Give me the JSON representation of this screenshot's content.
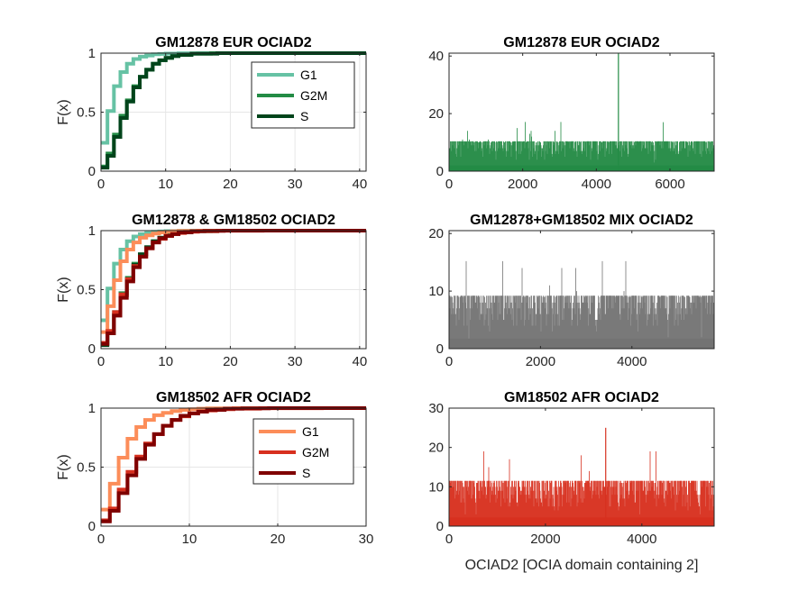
{
  "figure": {
    "footer_xlabel": "OCIAD2 [OCIA domain containing 2]"
  },
  "colors": {
    "eur_g1": "#66c2a4",
    "eur_g2m": "#238b45",
    "eur_s": "#00441b",
    "afr_g1": "#fc8d59",
    "afr_g2m": "#d7301f",
    "afr_s": "#7f0000",
    "hist_eur": "#238b45",
    "hist_mix": "#737373",
    "hist_afr": "#d7301f",
    "grid": "#e6e6e6",
    "axis": "#262626"
  },
  "chart_data": [
    {
      "id": "cdf_eur",
      "type": "line",
      "subtype": "ecdf-stairs",
      "title": "GM12878 EUR OCIAD2",
      "ylabel": "F(x)",
      "xlim": [
        0,
        41
      ],
      "ylim": [
        0,
        1
      ],
      "xticks": [
        0,
        10,
        20,
        30,
        40
      ],
      "yticks": [
        0,
        0.5,
        1
      ],
      "grid": true,
      "legend": "top-right",
      "series": [
        {
          "name": "G1",
          "color": "#66c2a4",
          "x": [
            0,
            1,
            2,
            3,
            4,
            5,
            6,
            7,
            8,
            9,
            10,
            12,
            15,
            41
          ],
          "y": [
            0.24,
            0.51,
            0.72,
            0.84,
            0.91,
            0.95,
            0.97,
            0.98,
            0.99,
            0.993,
            0.996,
            0.999,
            1,
            1
          ]
        },
        {
          "name": "G2M",
          "color": "#238b45",
          "x": [
            0,
            1,
            2,
            3,
            4,
            5,
            6,
            7,
            8,
            9,
            10,
            11,
            12,
            14,
            17,
            41
          ],
          "y": [
            0.04,
            0.15,
            0.31,
            0.47,
            0.6,
            0.72,
            0.8,
            0.86,
            0.91,
            0.94,
            0.96,
            0.975,
            0.985,
            0.995,
            1,
            1
          ]
        },
        {
          "name": "S",
          "color": "#00441b",
          "x": [
            0,
            1,
            2,
            3,
            4,
            5,
            6,
            7,
            8,
            9,
            10,
            11,
            12,
            14,
            18,
            41
          ],
          "y": [
            0.03,
            0.13,
            0.29,
            0.45,
            0.59,
            0.71,
            0.8,
            0.86,
            0.91,
            0.94,
            0.96,
            0.975,
            0.985,
            0.995,
            1,
            1
          ]
        }
      ]
    },
    {
      "id": "hist_eur",
      "type": "bar",
      "subtype": "count-histogram",
      "title": "GM12878 EUR OCIAD2",
      "xlim": [
        0,
        7200
      ],
      "ylim": [
        0,
        41
      ],
      "xticks": [
        0,
        2000,
        4000,
        6000
      ],
      "yticks": [
        0,
        20,
        40
      ],
      "n_cells": 7200,
      "typical_max": 9,
      "peak": {
        "x": 4600,
        "y": 41
      },
      "color": "#238b45"
    },
    {
      "id": "cdf_mix",
      "type": "line",
      "subtype": "ecdf-stairs",
      "title": "GM12878 & GM18502 OCIAD2",
      "ylabel": "F(x)",
      "xlim": [
        0,
        41
      ],
      "ylim": [
        0,
        1
      ],
      "xticks": [
        0,
        10,
        20,
        30,
        40
      ],
      "yticks": [
        0,
        0.5,
        1
      ],
      "grid": true,
      "series": [
        {
          "name": "G1",
          "color": "#66c2a4",
          "x": [
            0,
            1,
            2,
            3,
            4,
            5,
            6,
            7,
            8,
            9,
            10,
            12,
            15,
            41
          ],
          "y": [
            0.24,
            0.51,
            0.72,
            0.84,
            0.91,
            0.95,
            0.97,
            0.98,
            0.99,
            0.993,
            0.996,
            0.999,
            1,
            1
          ]
        },
        {
          "name": "G2M",
          "color": "#238b45",
          "x": [
            0,
            1,
            2,
            3,
            4,
            5,
            6,
            7,
            8,
            9,
            10,
            11,
            12,
            14,
            17,
            41
          ],
          "y": [
            0.04,
            0.15,
            0.31,
            0.47,
            0.6,
            0.72,
            0.8,
            0.86,
            0.91,
            0.94,
            0.96,
            0.975,
            0.985,
            0.995,
            1,
            1
          ]
        },
        {
          "name": "S",
          "color": "#00441b",
          "x": [
            0,
            1,
            2,
            3,
            4,
            5,
            6,
            7,
            8,
            9,
            10,
            11,
            12,
            14,
            18,
            41
          ],
          "y": [
            0.03,
            0.13,
            0.29,
            0.45,
            0.59,
            0.71,
            0.8,
            0.86,
            0.91,
            0.94,
            0.96,
            0.975,
            0.985,
            0.995,
            1,
            1
          ]
        },
        {
          "name": "G1",
          "color": "#fc8d59",
          "x": [
            0,
            1,
            2,
            3,
            4,
            5,
            6,
            7,
            8,
            9,
            10,
            11,
            12,
            15
          ],
          "y": [
            0.14,
            0.36,
            0.58,
            0.74,
            0.84,
            0.9,
            0.94,
            0.96,
            0.975,
            0.985,
            0.99,
            0.995,
            0.998,
            1
          ]
        },
        {
          "name": "G2M",
          "color": "#d7301f",
          "x": [
            0,
            1,
            2,
            3,
            4,
            5,
            6,
            7,
            8,
            9,
            10,
            11,
            12,
            13,
            15,
            18,
            25
          ],
          "y": [
            0.05,
            0.15,
            0.31,
            0.46,
            0.59,
            0.7,
            0.78,
            0.85,
            0.9,
            0.93,
            0.955,
            0.97,
            0.98,
            0.99,
            0.995,
            0.999,
            1
          ]
        },
        {
          "name": "S",
          "color": "#7f0000",
          "x": [
            0,
            1,
            2,
            3,
            4,
            5,
            6,
            7,
            8,
            9,
            10,
            11,
            12,
            14,
            16,
            19
          ],
          "y": [
            0.04,
            0.13,
            0.28,
            0.43,
            0.57,
            0.69,
            0.78,
            0.85,
            0.9,
            0.935,
            0.955,
            0.97,
            0.985,
            0.995,
            0.998,
            1
          ]
        }
      ]
    },
    {
      "id": "hist_mix",
      "type": "bar",
      "subtype": "count-histogram",
      "title": "GM12878+GM18502 MIX OCIAD2",
      "xlim": [
        0,
        5800
      ],
      "ylim": [
        0,
        20.5
      ],
      "xticks": [
        0,
        2000,
        4000
      ],
      "yticks": [
        0,
        10,
        20
      ],
      "n_cells": 5800,
      "typical_max": 8,
      "color": "#737373"
    },
    {
      "id": "cdf_afr",
      "type": "line",
      "subtype": "ecdf-stairs",
      "title": "GM18502 AFR OCIAD2",
      "ylabel": "F(x)",
      "xlim": [
        0,
        30
      ],
      "ylim": [
        0,
        1
      ],
      "xticks": [
        0,
        10,
        20,
        30
      ],
      "yticks": [
        0,
        0.5,
        1
      ],
      "grid": true,
      "legend": "top-right",
      "series": [
        {
          "name": "G1",
          "color": "#fc8d59",
          "x": [
            0,
            1,
            2,
            3,
            4,
            5,
            6,
            7,
            8,
            9,
            10,
            11,
            12,
            15,
            25
          ],
          "y": [
            0.14,
            0.36,
            0.58,
            0.74,
            0.84,
            0.9,
            0.94,
            0.96,
            0.975,
            0.985,
            0.99,
            0.995,
            0.998,
            1,
            1
          ]
        },
        {
          "name": "G2M",
          "color": "#d7301f",
          "x": [
            0,
            1,
            2,
            3,
            4,
            5,
            6,
            7,
            8,
            9,
            10,
            11,
            12,
            13,
            15,
            18,
            25
          ],
          "y": [
            0.05,
            0.15,
            0.31,
            0.46,
            0.59,
            0.7,
            0.78,
            0.85,
            0.9,
            0.93,
            0.955,
            0.97,
            0.98,
            0.99,
            0.995,
            0.999,
            1
          ]
        },
        {
          "name": "S",
          "color": "#7f0000",
          "x": [
            0,
            1,
            2,
            3,
            4,
            5,
            6,
            7,
            8,
            9,
            10,
            11,
            12,
            14,
            16,
            19
          ],
          "y": [
            0.04,
            0.13,
            0.28,
            0.43,
            0.57,
            0.69,
            0.78,
            0.85,
            0.9,
            0.935,
            0.955,
            0.97,
            0.985,
            0.995,
            0.998,
            1
          ]
        }
      ]
    },
    {
      "id": "hist_afr",
      "type": "bar",
      "subtype": "count-histogram",
      "title": "GM18502 AFR OCIAD2",
      "xlim": [
        0,
        5500
      ],
      "ylim": [
        0,
        30
      ],
      "xticks": [
        0,
        2000,
        4000
      ],
      "yticks": [
        0,
        10,
        20,
        30
      ],
      "n_cells": 5500,
      "typical_max": 10,
      "peak": {
        "x": 3250,
        "y": 25
      },
      "color": "#d7301f"
    }
  ]
}
